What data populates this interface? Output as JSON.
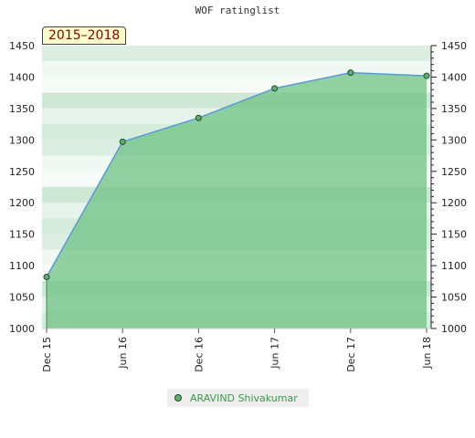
{
  "chart_data": {
    "type": "area",
    "title": "WOF ratinglist",
    "period_label": "2015–2018",
    "x": [
      "Dec 15",
      "Jun 16",
      "Dec 16",
      "Jun 17",
      "Dec 17",
      "Jun 18"
    ],
    "series": [
      {
        "name": "ARAVIND Shivakumar",
        "values": [
          1082,
          1297,
          1335,
          1382,
          1407,
          1402
        ]
      }
    ],
    "ylim": [
      1000,
      1450
    ],
    "yticks": [
      1000,
      1050,
      1100,
      1150,
      1200,
      1250,
      1300,
      1350,
      1400,
      1450
    ],
    "grid": true,
    "legend_position": "bottom",
    "colors": {
      "line": "#5b9bd5",
      "fill": "#6abf7f",
      "point": "#5fb06e"
    }
  }
}
